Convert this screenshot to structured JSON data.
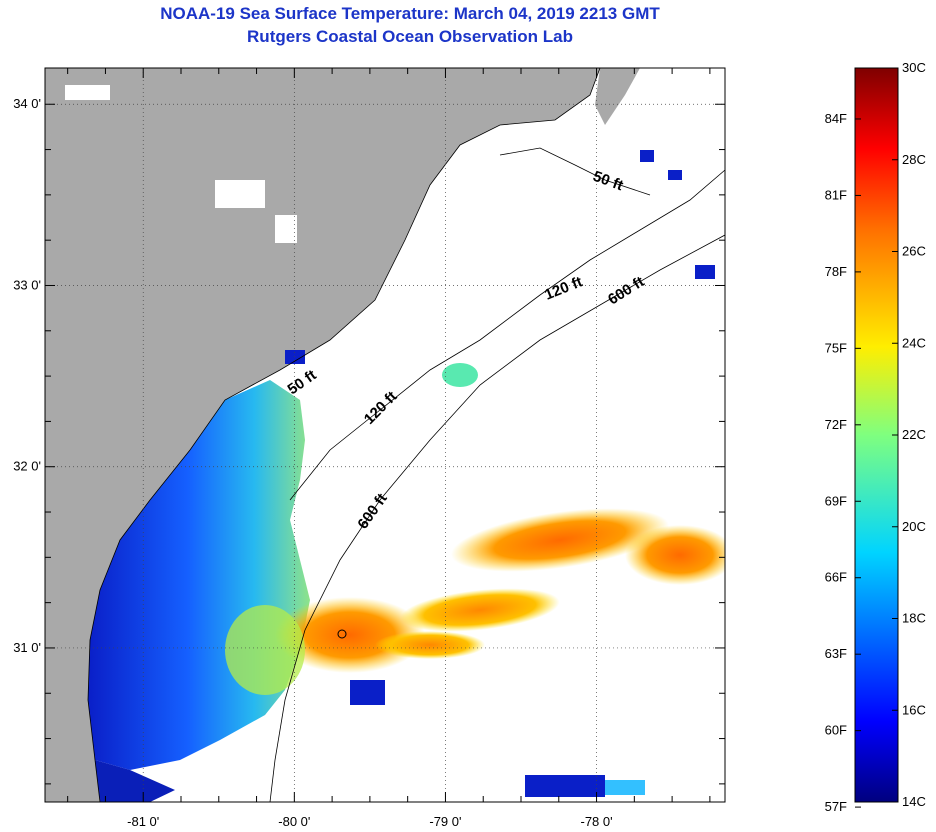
{
  "title": "NOAA-19 Sea Surface Temperature:  March 04, 2019 2213 GMT",
  "subtitle": "Rutgers Coastal Ocean Observation Lab",
  "map": {
    "lon_range": [
      -81.65,
      -77.15
    ],
    "lat_range": [
      30.15,
      34.2
    ],
    "lon_ticks": [
      {
        "value": -81,
        "label": "-81 0'"
      },
      {
        "value": -80,
        "label": "-80 0'"
      },
      {
        "value": -79,
        "label": "-79 0'"
      },
      {
        "value": -78,
        "label": "-78 0'"
      }
    ],
    "lat_ticks": [
      {
        "value": 34,
        "label": "34 0'"
      },
      {
        "value": 33,
        "label": "33 0'"
      },
      {
        "value": 32,
        "label": "32 0'"
      },
      {
        "value": 31,
        "label": "31 0'"
      }
    ],
    "contour_labels": [
      "50 ft",
      "50 ft",
      "120 ft",
      "120 ft",
      "600 ft",
      "600 ft"
    ],
    "colors": {
      "land": "#a9a9a9",
      "ocean_nodata": "#ffffff",
      "grid": "#000000"
    }
  },
  "colorbar": {
    "min_c": 14,
    "max_c": 30,
    "celsius_labels": [
      "30C",
      "28C",
      "26C",
      "24C",
      "22C",
      "20C",
      "18C",
      "16C",
      "14C"
    ],
    "fahrenheit_labels": [
      "84F",
      "81F",
      "78F",
      "75F",
      "72F",
      "69F",
      "66F",
      "63F",
      "60F",
      "57F"
    ],
    "colormap": "jet"
  }
}
